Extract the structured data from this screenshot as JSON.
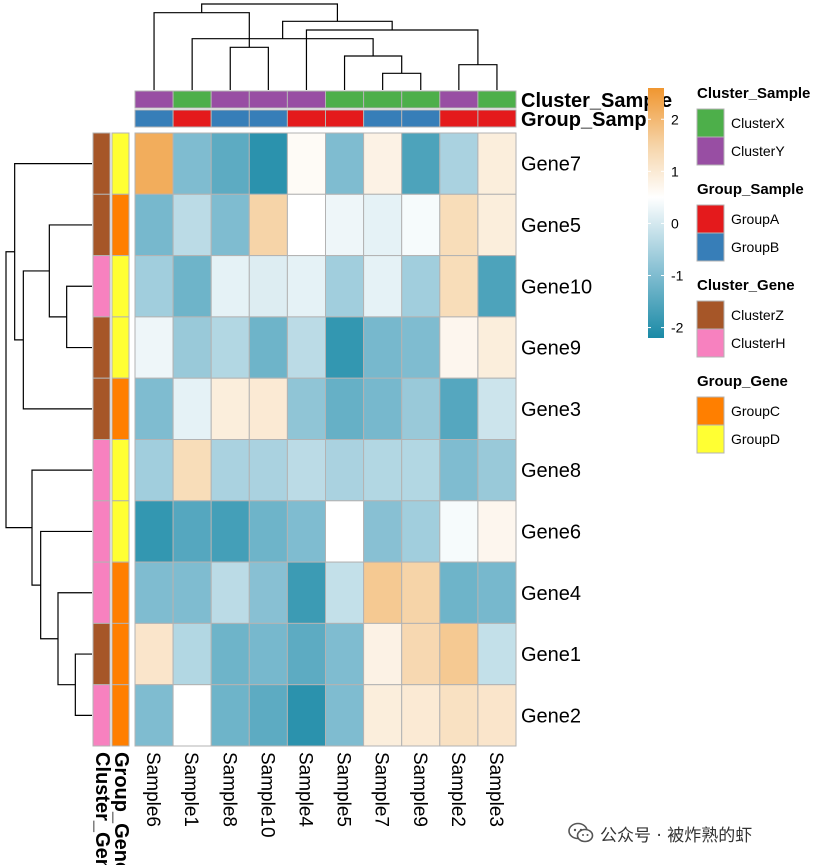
{
  "chart_data": {
    "type": "heatmap",
    "rows": [
      "Gene7",
      "Gene5",
      "Gene10",
      "Gene9",
      "Gene3",
      "Gene8",
      "Gene6",
      "Gene4",
      "Gene1",
      "Gene2"
    ],
    "columns": [
      "Sample6",
      "Sample1",
      "Sample8",
      "Sample10",
      "Sample4",
      "Sample5",
      "Sample7",
      "Sample9",
      "Sample2",
      "Sample3"
    ],
    "values": [
      [
        2.2,
        -1.0,
        -1.4,
        -2.0,
        0.6,
        -1.0,
        0.8,
        -1.6,
        -0.5,
        0.9
      ],
      [
        -1.1,
        -0.3,
        -1.0,
        1.5,
        0.5,
        0.3,
        0.2,
        0.4,
        1.3,
        0.9
      ],
      [
        -0.6,
        -1.2,
        0.2,
        0.1,
        0.2,
        -0.6,
        0.2,
        -0.6,
        1.3,
        -1.6
      ],
      [
        0.3,
        -0.7,
        -0.4,
        -1.2,
        -0.3,
        -1.9,
        -1.1,
        -1.0,
        0.7,
        0.9
      ],
      [
        -1.0,
        0.2,
        0.9,
        1.0,
        -0.8,
        -1.3,
        -1.1,
        -0.7,
        -1.5,
        -0.1
      ],
      [
        -0.6,
        1.3,
        -0.5,
        -0.5,
        -0.3,
        -0.5,
        -0.4,
        -0.4,
        -1.0,
        -0.7
      ],
      [
        -1.9,
        -1.5,
        -1.7,
        -1.2,
        -1.0,
        0.5,
        -0.9,
        -0.6,
        0.4,
        0.7
      ],
      [
        -1.0,
        -1.0,
        -0.3,
        -0.9,
        -1.8,
        -0.2,
        1.7,
        1.5,
        -1.2,
        -1.1
      ],
      [
        1.1,
        -0.4,
        -1.2,
        -1.1,
        -1.4,
        -1.0,
        0.8,
        1.4,
        1.7,
        -0.2
      ],
      [
        -1.0,
        0.5,
        -1.2,
        -1.4,
        -2.0,
        -1.0,
        0.9,
        1.0,
        1.2,
        1.1
      ]
    ],
    "color_scale": {
      "min": -2.2,
      "max": 2.6,
      "stops": [
        {
          "value": -2.2,
          "color": "#1a8aa6"
        },
        {
          "value": -1.0,
          "color": "#7fbcd0"
        },
        {
          "value": 0.5,
          "color": "#ffffff"
        },
        {
          "value": 1.5,
          "color": "#f6d4a8"
        },
        {
          "value": 2.6,
          "color": "#f09630"
        }
      ],
      "ticks": [
        2,
        1,
        0,
        -1,
        -2
      ]
    },
    "column_annotations": [
      {
        "name": "Cluster_Sample",
        "values": [
          "ClusterY",
          "ClusterX",
          "ClusterY",
          "ClusterY",
          "ClusterY",
          "ClusterX",
          "ClusterX",
          "ClusterX",
          "ClusterY",
          "ClusterX"
        ]
      },
      {
        "name": "Group_Sample",
        "values": [
          "GroupB",
          "GroupA",
          "GroupB",
          "GroupB",
          "GroupA",
          "GroupA",
          "GroupB",
          "GroupB",
          "GroupA",
          "GroupA"
        ]
      }
    ],
    "row_annotations": [
      {
        "name": "Cluster_Gene",
        "values": [
          "ClusterZ",
          "ClusterZ",
          "ClusterH",
          "ClusterZ",
          "ClusterZ",
          "ClusterH",
          "ClusterH",
          "ClusterH",
          "ClusterZ",
          "ClusterH"
        ]
      },
      {
        "name": "Group_Gene",
        "values": [
          "GroupD",
          "GroupC",
          "GroupD",
          "GroupD",
          "GroupC",
          "GroupD",
          "GroupD",
          "GroupC",
          "GroupC",
          "GroupC"
        ]
      }
    ],
    "annotation_colors": {
      "ClusterX": "#4daf4a",
      "ClusterY": "#984ea3",
      "GroupA": "#e41a1c",
      "GroupB": "#377eb8",
      "ClusterZ": "#a65628",
      "ClusterH": "#f781bf",
      "GroupC": "#ff7f00",
      "GroupD": "#ffff33"
    },
    "legends": [
      {
        "title": "Cluster_Sample",
        "items": [
          "ClusterX",
          "ClusterY"
        ]
      },
      {
        "title": "Group_Sample",
        "items": [
          "GroupA",
          "GroupB"
        ]
      },
      {
        "title": "Cluster_Gene",
        "items": [
          "ClusterZ",
          "ClusterH"
        ]
      },
      {
        "title": "Group_Gene",
        "items": [
          "GroupC",
          "GroupD"
        ]
      }
    ],
    "column_dendrogram": {
      "merges": [
        [
          6,
          7
        ],
        [
          8,
          9
        ],
        [
          10,
          5
        ],
        [
          2,
          3
        ],
        [
          12,
          1
        ],
        [
          4,
          11
        ],
        [
          14,
          15
        ],
        [
          0,
          13
        ],
        [
          17,
          16
        ]
      ]
    },
    "row_dendrogram": {
      "merges": [
        [
          8,
          9
        ],
        [
          2,
          3
        ],
        [
          10,
          7
        ],
        [
          1,
          11
        ],
        [
          6,
          12
        ],
        [
          5,
          14
        ],
        [
          13,
          4
        ],
        [
          0,
          16
        ],
        [
          17,
          15
        ]
      ]
    }
  },
  "watermark": {
    "text": "公众号 · 被炸熟的虾",
    "icon": "wechat-icon"
  }
}
